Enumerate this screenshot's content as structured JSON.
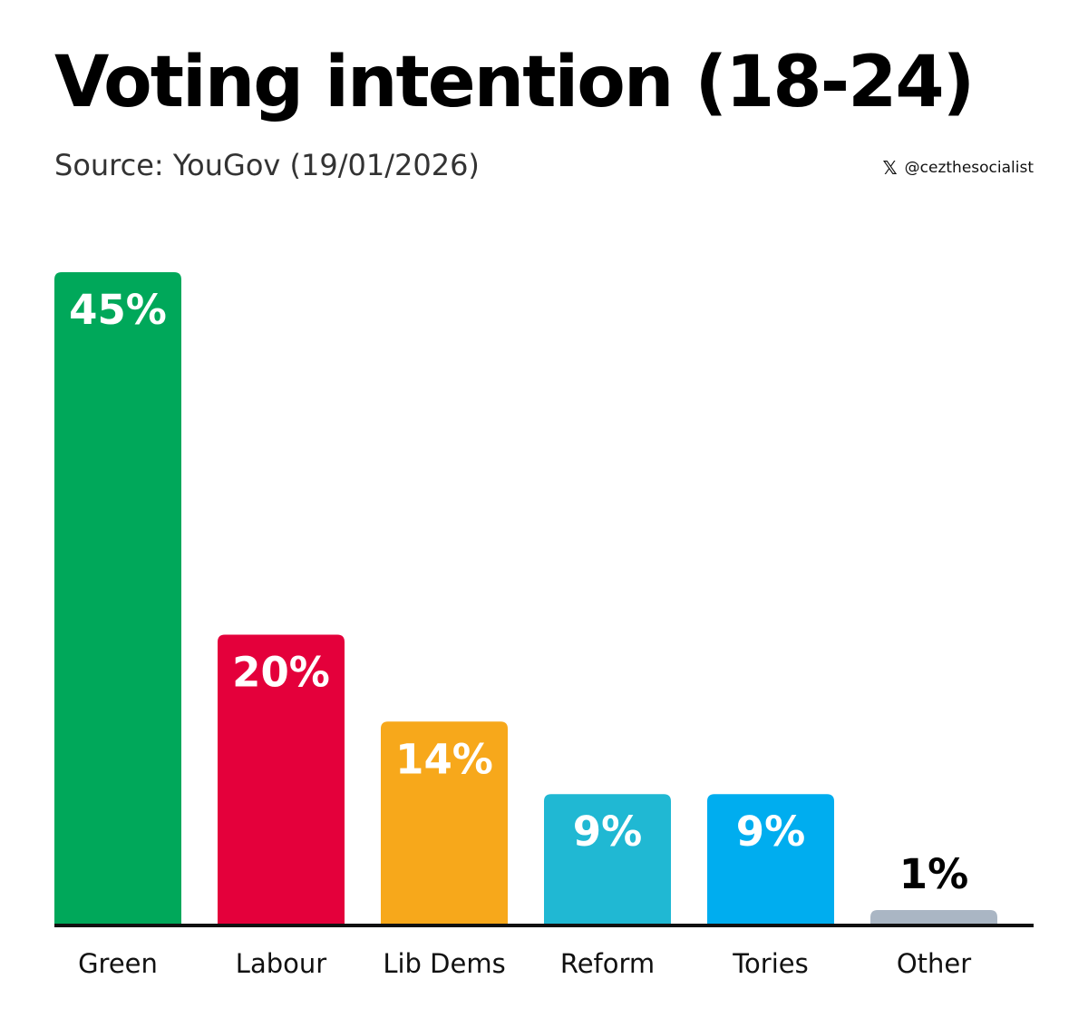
{
  "title": "Voting intention (18-24)",
  "subtitle": "Source: YouGov (19/01/2026)",
  "social": {
    "icon": "x-logo-icon",
    "handle": "@cezthesocialist"
  },
  "chart_data": {
    "type": "bar",
    "title": "Voting intention (18-24)",
    "subtitle": "Source: YouGov (19/01/2026)",
    "categories": [
      "Green",
      "Labour",
      "Lib Dems",
      "Reform",
      "Tories",
      "Other"
    ],
    "values": [
      45,
      20,
      14,
      9,
      9,
      1
    ],
    "data_labels": [
      "45%",
      "20%",
      "14%",
      "9%",
      "9%",
      "1%"
    ],
    "colors": [
      "#00a85a",
      "#e4003b",
      "#f7a81b",
      "#20b8d3",
      "#00adef",
      "#aab6c4"
    ],
    "label_colors": [
      "#ffffff",
      "#ffffff",
      "#ffffff",
      "#ffffff",
      "#ffffff",
      "#000000"
    ],
    "baseline_color": "#111111",
    "ylim": [
      0,
      45
    ],
    "grid": false,
    "legend": "none"
  }
}
